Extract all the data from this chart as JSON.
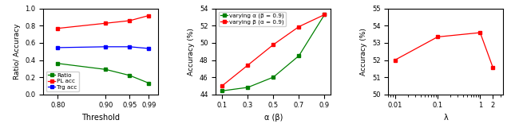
{
  "subplot1": {
    "x": [
      0.8,
      0.9,
      0.95,
      0.99
    ],
    "ratio": [
      0.36,
      0.29,
      0.22,
      0.13
    ],
    "pl_acc": [
      0.77,
      0.83,
      0.86,
      0.92
    ],
    "trg_acc": [
      0.545,
      0.555,
      0.555,
      0.535
    ],
    "xlabel": "Threshold",
    "ylabel": "Ratio/ Accuracy",
    "legend": [
      "Ratio",
      "PL acc",
      "Trg acc"
    ],
    "colors": [
      "green",
      "red",
      "blue"
    ],
    "ylim": [
      0.0,
      1.0
    ],
    "xlim": [
      0.77,
      1.01
    ],
    "xticks": [
      0.8,
      0.9,
      0.95,
      0.99
    ],
    "yticks": [
      0.0,
      0.2,
      0.4,
      0.6,
      0.8,
      1.0
    ]
  },
  "subplot2": {
    "x": [
      0.1,
      0.3,
      0.5,
      0.7,
      0.9
    ],
    "varying_alpha": [
      44.4,
      44.8,
      46.0,
      48.5,
      53.3
    ],
    "varying_beta": [
      45.0,
      47.4,
      49.8,
      51.9,
      53.3
    ],
    "xlabel": "α (β)",
    "ylabel": "Accuracy (%)",
    "legend": [
      "varying α (β = 0.9)",
      "varying β (α = 0.9)"
    ],
    "colors": [
      "green",
      "red"
    ],
    "ylim": [
      44,
      54
    ],
    "xlim": [
      0.05,
      0.95
    ],
    "xticks": [
      0.1,
      0.3,
      0.5,
      0.7,
      0.9
    ],
    "yticks": [
      44,
      46,
      48,
      50,
      52,
      54
    ]
  },
  "subplot3": {
    "x": [
      0.01,
      0.1,
      1,
      2
    ],
    "values": [
      52.0,
      53.35,
      53.6,
      51.55
    ],
    "xlabel": "λ",
    "ylabel": "Accuracy (%)",
    "color": "red",
    "ylim": [
      50,
      55
    ],
    "xticks": [
      0.01,
      0.1,
      1,
      2
    ],
    "xtick_labels": [
      "0.01",
      "0.1",
      "1",
      "2"
    ],
    "yticks": [
      50,
      51,
      52,
      53,
      54,
      55
    ]
  }
}
